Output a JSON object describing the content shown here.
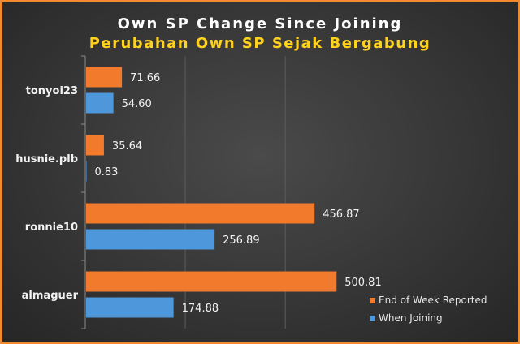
{
  "title": "Own SP Change Since Joining",
  "subtitle": "Perubahan Own SP Sejak Bergabung",
  "colors": {
    "end_of_week": "#f27a2c",
    "when_joining": "#4f97db",
    "frame_border": "#f28a2e",
    "title": "#ffffff",
    "subtitle": "#ffd21f",
    "label_text": "#f2f2f2"
  },
  "chart_data": {
    "type": "bar",
    "orientation": "horizontal",
    "categories": [
      "tonyoi23",
      "husnie.plb",
      "ronnie10",
      "almaguer"
    ],
    "series": [
      {
        "name": "End of Week Reported",
        "values": [
          71.66,
          35.64,
          456.87,
          500.81
        ]
      },
      {
        "name": "When Joining",
        "values": [
          54.6,
          0.83,
          256.89,
          174.88
        ]
      }
    ],
    "xlim": [
      0,
      600
    ],
    "grid": true,
    "data_labels": true,
    "legend_position": "bottom-right"
  }
}
